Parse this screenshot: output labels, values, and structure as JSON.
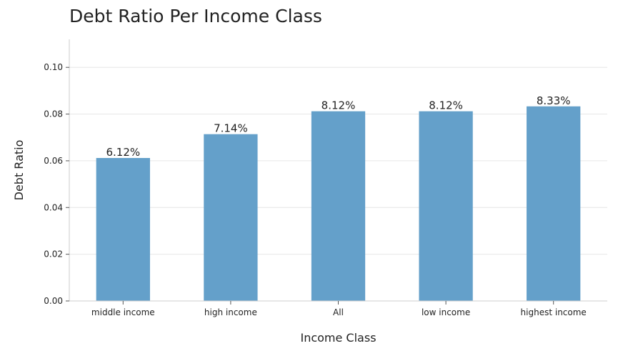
{
  "chart_data": {
    "type": "bar",
    "title": "Debt Ratio Per Income Class",
    "xlabel": "Income Class",
    "ylabel": "Debt Ratio",
    "categories": [
      "middle income",
      "high income",
      "All",
      "low income",
      "highest income"
    ],
    "values": [
      0.0612,
      0.0714,
      0.0812,
      0.0812,
      0.0833
    ],
    "data_labels": [
      "6.12%",
      "7.14%",
      "8.12%",
      "8.12%",
      "8.33%"
    ],
    "yticks": [
      0.0,
      0.02,
      0.04,
      0.06,
      0.08,
      0.1
    ],
    "ytick_labels": [
      "0.00",
      "0.02",
      "0.04",
      "0.06",
      "0.08",
      "0.10"
    ],
    "ylim": [
      0,
      0.112
    ],
    "grid": "horizontal",
    "legend": "none",
    "bar_color": "#64a0ca",
    "grid_color": "#e6e6e6",
    "axis_color": "#cccccc"
  }
}
